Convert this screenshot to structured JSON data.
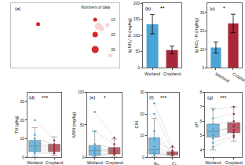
{
  "chart_data": [
    {
      "type": "scatter",
      "label": "(a)",
      "legend_title": "Numbers of data",
      "color": "#d62728",
      "xlim": [
        -180,
        180
      ],
      "ylim": [
        -60,
        85
      ],
      "tick_labels": false,
      "series": [
        {
          "name": "10",
          "size": 10,
          "lon": [
            -90,
            140,
            150
          ],
          "lat": [
            38,
            36,
            -32
          ]
        },
        {
          "name": "20",
          "size": 20,
          "lon": [
            120
          ],
          "lat": [
            28
          ]
        },
        {
          "name": "30",
          "size": 30,
          "lon": [
            110
          ],
          "lat": [
            33
          ]
        }
      ]
    },
    {
      "type": "bar",
      "label": "(b)",
      "ylabel": "lg NH₄⁺-N (mg/kg)",
      "categories": [
        "Wetland",
        "Cropland"
      ],
      "values": [
        135,
        55
      ],
      "errors": [
        30,
        12
      ],
      "colors": [
        "#4ba3d3",
        "#a8283a"
      ],
      "ylim": [
        0,
        200
      ],
      "yticks": [
        0,
        50,
        100,
        150,
        200
      ],
      "significance": "**"
    },
    {
      "type": "bar",
      "label": "(c)",
      "ylabel": "lg NO₃⁻-N (mg/kg)",
      "categories": [
        "Wetland",
        "Cropland"
      ],
      "values": [
        11,
        24
      ],
      "errors": [
        3,
        5
      ],
      "colors": [
        "#4ba3d3",
        "#a8283a"
      ],
      "ylim": [
        0,
        35
      ],
      "yticks": [
        0,
        10,
        20,
        30
      ],
      "significance": "*"
    },
    {
      "type": "box",
      "label": "(d)",
      "ylabel": "TN (g/kg)",
      "categories": [
        "Wetland",
        "Cropland"
      ],
      "colors": [
        "#4ba3d3",
        "#a8283a"
      ],
      "boxes": [
        {
          "q1": 3,
          "median": 6,
          "q3": 9,
          "lowerfence": 0.5,
          "upperfence": 16
        },
        {
          "q1": 3,
          "median": 5,
          "q3": 7,
          "lowerfence": 1,
          "upperfence": 11
        }
      ],
      "pairs": [
        [
          3,
          2.5
        ],
        [
          5,
          4
        ],
        [
          6,
          5
        ],
        [
          8,
          6
        ],
        [
          10,
          7
        ],
        [
          4,
          3.5
        ],
        [
          12,
          6
        ],
        [
          7,
          5.5
        ],
        [
          2,
          2
        ],
        [
          20,
          9
        ]
      ],
      "ylim": [
        0,
        35
      ],
      "yticks": [
        0,
        10,
        20,
        30
      ],
      "significance": "***"
    },
    {
      "type": "box",
      "label": "(e)",
      "ylabel": "MBN (mg/kg)",
      "categories": [
        "Wetland",
        "Cropland"
      ],
      "colors": [
        "#4ba3d3",
        "#a8283a"
      ],
      "boxes": [
        {
          "q1": 3,
          "median": 10,
          "q3": 18,
          "lowerfence": 0.5,
          "upperfence": 40
        },
        {
          "q1": 5,
          "median": 10,
          "q3": 15,
          "lowerfence": 1,
          "upperfence": 28
        }
      ],
      "pairs": [
        [
          3,
          5
        ],
        [
          8,
          10
        ],
        [
          10,
          12
        ],
        [
          15,
          9
        ],
        [
          20,
          14
        ],
        [
          5,
          6
        ],
        [
          40,
          20
        ],
        [
          12,
          8
        ],
        [
          2,
          4
        ],
        [
          70,
          30
        ]
      ],
      "ylim": [
        0,
        100
      ],
      "yticks": [
        0,
        50,
        100
      ],
      "significance": "*"
    },
    {
      "type": "box",
      "label": "(f)",
      "ylabel": "C/N",
      "categories": [
        "Wetland",
        "Cropland"
      ],
      "colors": [
        "#4ba3d3",
        "#a8283a"
      ],
      "boxes": [
        {
          "q1": 1.5,
          "median": 3.5,
          "q3": 9,
          "lowerfence": 0.3,
          "upperfence": 18
        },
        {
          "q1": 1,
          "median": 1.6,
          "q3": 2.5,
          "lowerfence": 0.4,
          "upperfence": 4.5
        }
      ],
      "pairs": [
        [
          1.5,
          1
        ],
        [
          3,
          1.5
        ],
        [
          9,
          2.5
        ],
        [
          12,
          2
        ],
        [
          5,
          1.8
        ],
        [
          2,
          1.2
        ],
        [
          20,
          3
        ],
        [
          8,
          2
        ],
        [
          1,
          0.8
        ],
        [
          25,
          5
        ]
      ],
      "ylim": [
        0,
        30
      ],
      "yticks": [
        0,
        10,
        20,
        30
      ],
      "significance": "***"
    },
    {
      "type": "box",
      "label": "(g)",
      "ylabel": "pH",
      "categories": [
        "Wetland",
        "Cropland"
      ],
      "colors": [
        "#4ba3d3",
        "#a8283a"
      ],
      "boxes": [
        {
          "q1": 4.9,
          "median": 5.3,
          "q3": 5.8,
          "lowerfence": 4.0,
          "upperfence": 6.9
        },
        {
          "q1": 5.2,
          "median": 5.55,
          "q3": 5.9,
          "lowerfence": 4.6,
          "upperfence": 7.0
        }
      ],
      "pairs": [
        [
          4.5,
          5
        ],
        [
          5,
          5.3
        ],
        [
          5.3,
          5.6
        ],
        [
          5.8,
          6
        ],
        [
          6.2,
          6.5
        ],
        [
          4.8,
          5.2
        ],
        [
          5.5,
          5.4
        ],
        [
          6.8,
          7
        ],
        [
          4.2,
          4.9
        ],
        [
          5.1,
          5.7
        ]
      ],
      "ylim": [
        3.5,
        8
      ],
      "yticks": [
        4,
        5,
        6,
        7,
        8
      ],
      "significance": "***"
    }
  ]
}
